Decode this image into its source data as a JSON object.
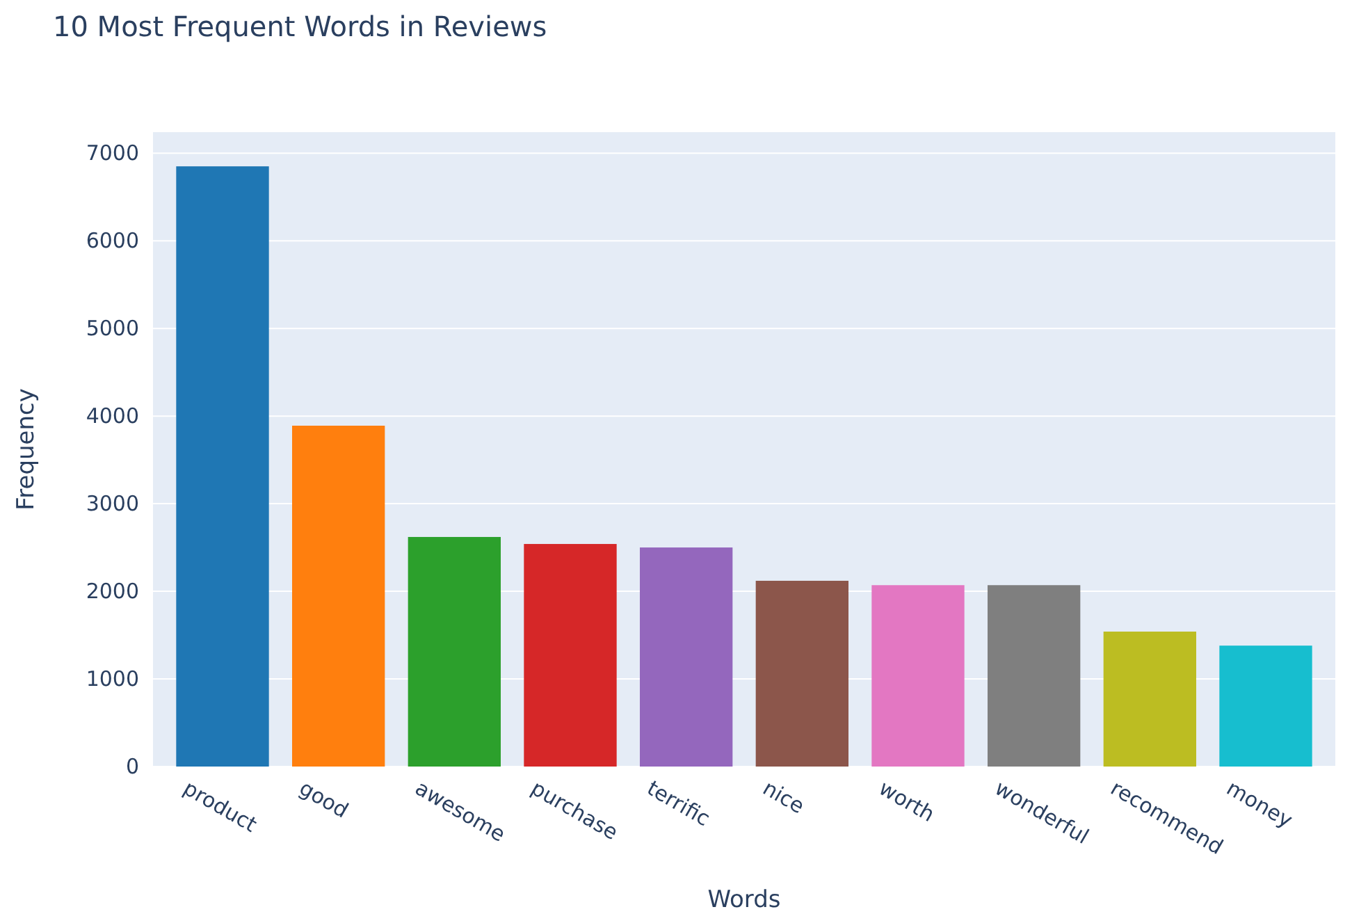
{
  "chart_data": {
    "type": "bar",
    "title": "10 Most Frequent Words in Reviews",
    "xlabel": "Words",
    "ylabel": "Frequency",
    "categories": [
      "product",
      "good",
      "awesome",
      "purchase",
      "terrific",
      "nice",
      "worth",
      "wonderful",
      "recommend",
      "money"
    ],
    "values": [
      6850,
      3890,
      2620,
      2540,
      2500,
      2120,
      2070,
      2070,
      1540,
      1380
    ],
    "colors": [
      "#1f77b4",
      "#ff7f0e",
      "#2ca02c",
      "#d62728",
      "#9467bd",
      "#8c564b",
      "#e377c2",
      "#7f7f7f",
      "#bcbd22",
      "#17becf"
    ],
    "ylim": [
      0,
      7240
    ],
    "yticks": [
      0,
      1000,
      2000,
      3000,
      4000,
      5000,
      6000,
      7000
    ],
    "grid": "y",
    "legend": false
  }
}
